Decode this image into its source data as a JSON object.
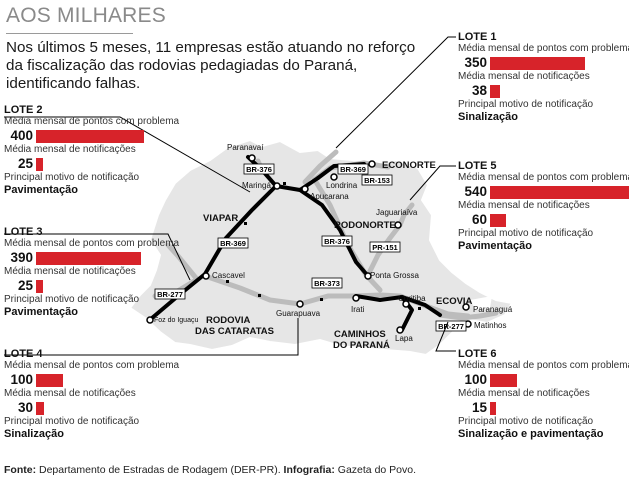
{
  "title": "AOS MILHARES",
  "intro": "Nos últimos 5 meses, 11 empresas estão atuando no reforço da fiscalização das rodovias pedagiadas do Paraná, identificando falhas.",
  "labels": {
    "pontos": "Média mensal de pontos com problema",
    "notificacoes": "Média mensal de notificações",
    "motivo": "Principal motivo de notificação"
  },
  "lotes": [
    {
      "id": "lote1",
      "name": "LOTE 1",
      "pontos": 350,
      "notificacoes": 38,
      "motivo": "Sinalização"
    },
    {
      "id": "lote2",
      "name": "LOTE 2",
      "pontos": 400,
      "notificacoes": 25,
      "motivo": "Pavimentação"
    },
    {
      "id": "lote3",
      "name": "LOTE 3",
      "pontos": 390,
      "notificacoes": 25,
      "motivo": "Pavimentação"
    },
    {
      "id": "lote4",
      "name": "LOTE 4",
      "pontos": 100,
      "notificacoes": 30,
      "motivo": "Sinalização"
    },
    {
      "id": "lote5",
      "name": "LOTE 5",
      "pontos": 540,
      "notificacoes": 60,
      "motivo": "Pavimentação"
    },
    {
      "id": "lote6",
      "name": "LOTE 6",
      "pontos": 100,
      "notificacoes": 15,
      "motivo": "Sinalização e pavimentação"
    }
  ],
  "map": {
    "concessionarias": {
      "viapar": "VIAPAR",
      "econorte": "ECONORTE",
      "rodonorte": "RODONORTE",
      "ecovia": "ECOVIA",
      "rodovia_cataratas_1": "RODOVIA",
      "rodovia_cataratas_2": "DAS CATARATAS",
      "caminhos_1": "CAMINHOS",
      "caminhos_2": "DO PARANÁ"
    },
    "cities": {
      "paranavai": "Paranavaí",
      "maringa": "Maringá",
      "londrina": "Londrina",
      "apucarana": "Apucarana",
      "jaguariaiva": "Jaguariaíva",
      "cascavel": "Cascavel",
      "ponta_grossa": "Ponta Grossa",
      "guarapuava": "Guarapuava",
      "irati": "Irati",
      "curitiba": "Curitiba",
      "lapa": "Lapa",
      "paranagua": "Paranaguá",
      "matinhos": "Matinhos",
      "foz": "Foz do Iguaçu"
    },
    "roads": {
      "br376a": "BR-376",
      "br369a": "BR-369",
      "br153": "BR-153",
      "br369b": "BR-369",
      "br376b": "BR-376",
      "pr151": "PR-151",
      "br277a": "BR-277",
      "br373": "BR-373",
      "br277b": "BR-277"
    }
  },
  "footer": {
    "fonte_label": "Fonte:",
    "fonte": "Departamento de Estradas de Rodagem (DER-PR).",
    "info_label": "Infografia:",
    "info": "Gazeta do Povo."
  },
  "colors": {
    "bar": "#d7232a",
    "map_fill": "#e6e6e6",
    "road_gray": "#bcbcbc",
    "road_black": "#000000"
  }
}
